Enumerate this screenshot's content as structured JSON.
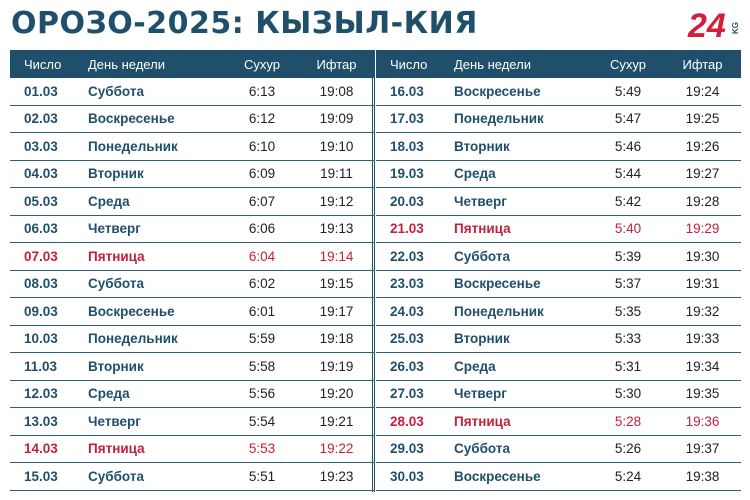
{
  "title": "ОРОЗО-2025: КЫЗЫЛ-КИЯ",
  "logo": {
    "number": "24",
    "suffix": "KG",
    "color": "#d31f3a"
  },
  "colors": {
    "header_bg": "#1f4f6a",
    "friday": "#c41f3b",
    "date_text": "#1f4f6a"
  },
  "headers": {
    "date": "Число",
    "day": "День недели",
    "suhur": "Сухур",
    "iftar": "Ифтар"
  },
  "left_rows": [
    {
      "date": "01.03",
      "day": "Суббота",
      "suhur": "6:13",
      "iftar": "19:08",
      "friday": false
    },
    {
      "date": "02.03",
      "day": "Воскресенье",
      "suhur": "6:12",
      "iftar": "19:09",
      "friday": false
    },
    {
      "date": "03.03",
      "day": "Понедельник",
      "suhur": "6:10",
      "iftar": "19:10",
      "friday": false
    },
    {
      "date": "04.03",
      "day": "Вторник",
      "suhur": "6:09",
      "iftar": "19:11",
      "friday": false
    },
    {
      "date": "05.03",
      "day": "Среда",
      "suhur": "6:07",
      "iftar": "19:12",
      "friday": false
    },
    {
      "date": "06.03",
      "day": "Четверг",
      "suhur": "6:06",
      "iftar": "19:13",
      "friday": false
    },
    {
      "date": "07.03",
      "day": "Пятница",
      "suhur": "6:04",
      "iftar": "19:14",
      "friday": true
    },
    {
      "date": "08.03",
      "day": "Суббота",
      "suhur": "6:02",
      "iftar": "19:15",
      "friday": false
    },
    {
      "date": "09.03",
      "day": "Воскресенье",
      "suhur": "6:01",
      "iftar": "19:17",
      "friday": false
    },
    {
      "date": "10.03",
      "day": "Понедельник",
      "suhur": "5:59",
      "iftar": "19:18",
      "friday": false
    },
    {
      "date": "11.03",
      "day": "Вторник",
      "suhur": "5:58",
      "iftar": "19:19",
      "friday": false
    },
    {
      "date": "12.03",
      "day": "Среда",
      "suhur": "5:56",
      "iftar": "19:20",
      "friday": false
    },
    {
      "date": "13.03",
      "day": "Четверг",
      "suhur": "5:54",
      "iftar": "19:21",
      "friday": false
    },
    {
      "date": "14.03",
      "day": "Пятница",
      "suhur": "5:53",
      "iftar": "19:22",
      "friday": true
    },
    {
      "date": "15.03",
      "day": "Суббота",
      "suhur": "5:51",
      "iftar": "19:23",
      "friday": false
    }
  ],
  "right_rows": [
    {
      "date": "16.03",
      "day": "Воскресенье",
      "suhur": "5:49",
      "iftar": "19:24",
      "friday": false
    },
    {
      "date": "17.03",
      "day": "Понедельник",
      "suhur": "5:47",
      "iftar": "19:25",
      "friday": false
    },
    {
      "date": "18.03",
      "day": "Вторник",
      "suhur": "5:46",
      "iftar": "19:26",
      "friday": false
    },
    {
      "date": "19.03",
      "day": "Среда",
      "suhur": "5:44",
      "iftar": "19:27",
      "friday": false
    },
    {
      "date": "20.03",
      "day": "Четверг",
      "suhur": "5:42",
      "iftar": "19:28",
      "friday": false
    },
    {
      "date": "21.03",
      "day": "Пятница",
      "suhur": "5:40",
      "iftar": "19:29",
      "friday": true
    },
    {
      "date": "22.03",
      "day": "Суббота",
      "suhur": "5:39",
      "iftar": "19:30",
      "friday": false
    },
    {
      "date": "23.03",
      "day": "Воскресенье",
      "suhur": "5:37",
      "iftar": "19:31",
      "friday": false
    },
    {
      "date": "24.03",
      "day": "Понедельник",
      "suhur": "5:35",
      "iftar": "19:32",
      "friday": false
    },
    {
      "date": "25.03",
      "day": "Вторник",
      "suhur": "5:33",
      "iftar": "19:33",
      "friday": false
    },
    {
      "date": "26.03",
      "day": "Среда",
      "suhur": "5:31",
      "iftar": "19:34",
      "friday": false
    },
    {
      "date": "27.03",
      "day": "Четверг",
      "suhur": "5:30",
      "iftar": "19:35",
      "friday": false
    },
    {
      "date": "28.03",
      "day": "Пятница",
      "suhur": "5:28",
      "iftar": "19:36",
      "friday": true
    },
    {
      "date": "29.03",
      "day": "Суббота",
      "suhur": "5:26",
      "iftar": "19:37",
      "friday": false
    },
    {
      "date": "30.03",
      "day": "Воскресенье",
      "suhur": "5:24",
      "iftar": "19:38",
      "friday": false
    }
  ]
}
